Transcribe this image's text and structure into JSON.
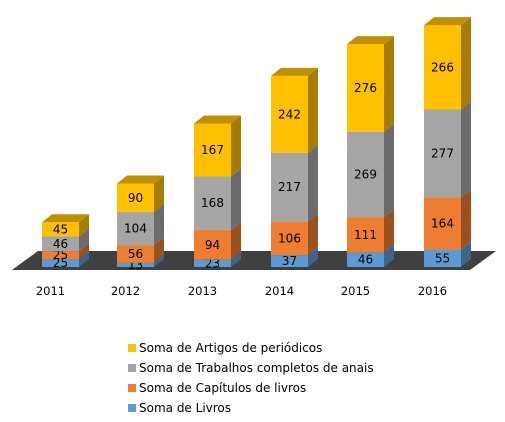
{
  "chart_data": {
    "type": "bar",
    "stacked": true,
    "style": "3d",
    "categories": [
      "2011",
      "2012",
      "2013",
      "2014",
      "2015",
      "2016"
    ],
    "series": [
      {
        "name": "Soma de Livros",
        "color": "#5b9bd5",
        "values": [
          25,
          13,
          23,
          37,
          46,
          55
        ]
      },
      {
        "name": "Soma de Capítulos de livros",
        "color": "#ed7d31",
        "values": [
          25,
          56,
          94,
          106,
          111,
          164
        ]
      },
      {
        "name": "Soma de Trabalhos completos de anais",
        "color": "#a5a5a5",
        "values": [
          46,
          104,
          168,
          217,
          269,
          277
        ]
      },
      {
        "name": "Soma de Artigos de periódicos",
        "color": "#ffc000",
        "values": [
          45,
          90,
          167,
          242,
          276,
          266
        ]
      }
    ],
    "legend_position": "bottom",
    "legend_order": [
      3,
      2,
      1,
      0
    ],
    "grid": false,
    "floor_color": "#404040"
  }
}
